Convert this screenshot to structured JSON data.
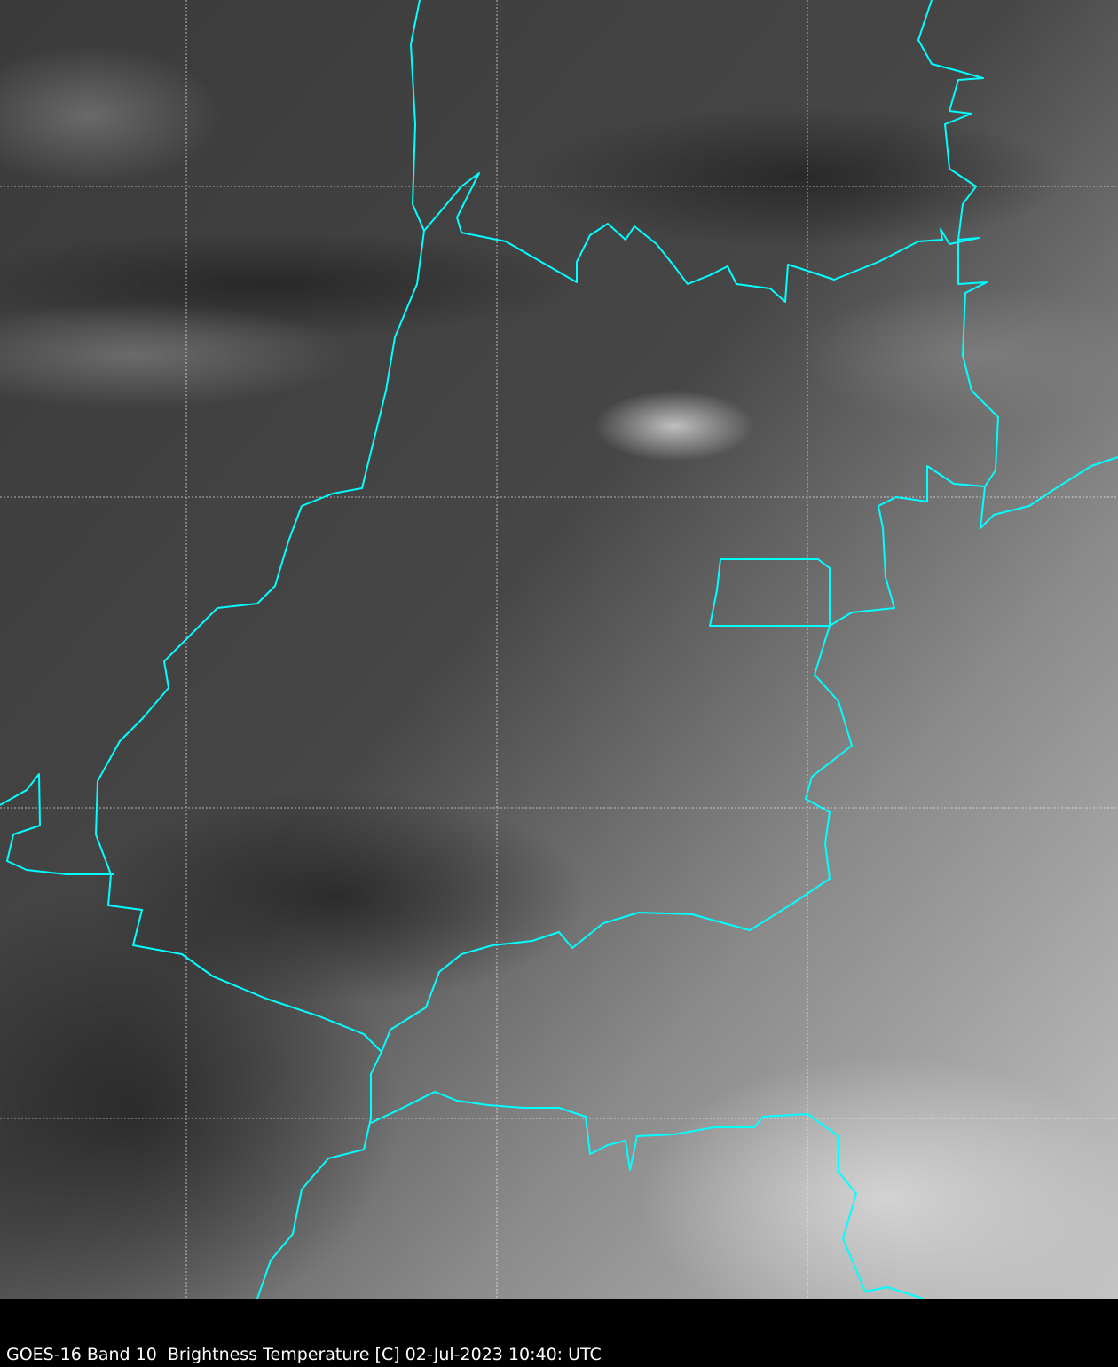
{
  "caption": "GOES-16 Band 10  Brightness Temperature [C] 02-Jul-2023 10:40: UTC",
  "colors": {
    "boundary": "#00ffff",
    "grid": "#ffffff",
    "background": "#000000"
  },
  "map": {
    "imagery": "grayscale infrared brightness temperature",
    "gridlines": true,
    "boundaries": "state/country borders"
  }
}
